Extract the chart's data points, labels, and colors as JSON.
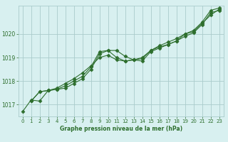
{
  "title": "Graphe pression niveau de la mer (hPa)",
  "bg_color": "#d8f0f0",
  "grid_color": "#aacccc",
  "line_color": "#2d6e2d",
  "xlim": [
    -0.5,
    23.5
  ],
  "ylim": [
    1016.5,
    1021.2
  ],
  "yticks": [
    1017,
    1018,
    1019,
    1020
  ],
  "xticks": [
    0,
    1,
    2,
    3,
    4,
    5,
    6,
    7,
    8,
    9,
    10,
    11,
    12,
    13,
    14,
    15,
    16,
    17,
    18,
    19,
    20,
    21,
    22,
    23
  ],
  "series": [
    {
      "x": [
        0,
        1,
        2,
        3,
        4,
        5,
        6,
        7,
        8,
        9,
        10,
        11,
        12,
        13,
        14,
        15,
        16,
        17,
        18,
        19,
        20,
        21,
        22,
        23
      ],
      "y": [
        1016.7,
        1017.2,
        1017.15,
        1017.6,
        1017.65,
        1017.7,
        1017.9,
        1018.1,
        1018.5,
        1019.15,
        1019.3,
        1019.3,
        1019.05,
        1018.9,
        1018.85,
        1019.25,
        1019.4,
        1019.55,
        1019.7,
        1020.0,
        1020.15,
        1020.5,
        1021.0,
        1021.1
      ]
    },
    {
      "x": [
        1,
        2,
        3,
        4,
        5,
        6,
        7,
        8,
        9,
        10,
        11,
        12,
        13,
        14,
        15,
        16,
        17,
        18,
        19,
        20,
        21,
        22,
        23
      ],
      "y": [
        1017.15,
        1017.55,
        1017.6,
        1017.65,
        1017.8,
        1018.0,
        1018.2,
        1018.6,
        1019.25,
        1019.3,
        1019.0,
        1018.85,
        1018.9,
        1018.95,
        1019.3,
        1019.45,
        1019.55,
        1019.7,
        1019.9,
        1020.05,
        1020.4,
        1020.9,
        1021.0
      ]
    },
    {
      "x": [
        1,
        2,
        3,
        4,
        5,
        6,
        7,
        8,
        9,
        10,
        11,
        12,
        13,
        14,
        15,
        16,
        17,
        18,
        19,
        20,
        21,
        22,
        23
      ],
      "y": [
        1017.15,
        1017.55,
        1017.6,
        1017.7,
        1017.9,
        1018.1,
        1018.35,
        1018.65,
        1019.0,
        1019.1,
        1018.9,
        1018.85,
        1018.9,
        1019.0,
        1019.3,
        1019.5,
        1019.65,
        1019.8,
        1020.0,
        1020.1,
        1020.45,
        1020.8,
        1021.05
      ]
    }
  ]
}
